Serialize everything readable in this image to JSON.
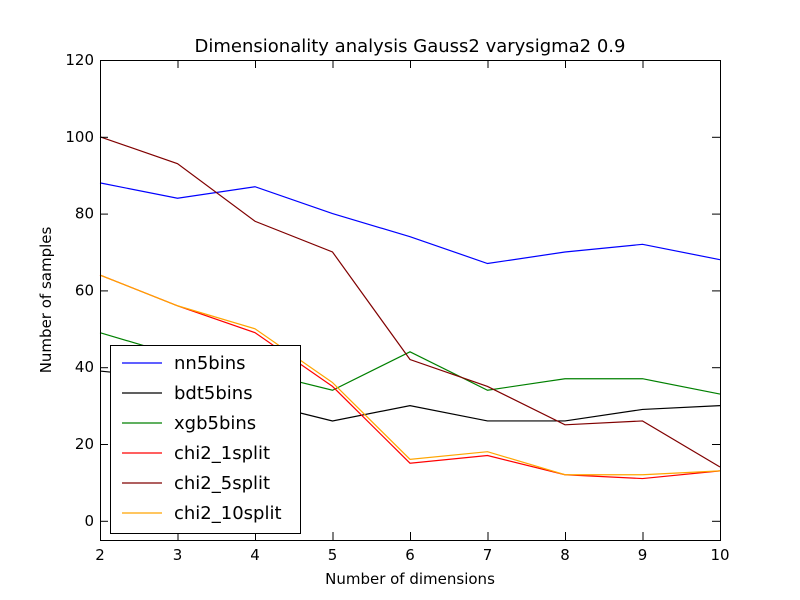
{
  "chart_data": {
    "type": "line",
    "title": "Dimensionality analysis Gauss2 varysigma2 0.9",
    "xlabel": "Number of dimensions",
    "ylabel": "Number of samples",
    "xlim": [
      2,
      10
    ],
    "ylim": [
      -5,
      120
    ],
    "xticks": [
      2,
      3,
      4,
      5,
      6,
      7,
      8,
      9,
      10
    ],
    "yticks": [
      0,
      20,
      40,
      60,
      80,
      100,
      120
    ],
    "grid": false,
    "legend_position": "lower-left",
    "x": [
      2,
      3,
      4,
      5,
      6,
      7,
      8,
      9,
      10
    ],
    "series": [
      {
        "name": "nn5bins",
        "color": "#0000ff",
        "values": [
          88,
          84,
          87,
          80,
          74,
          67,
          70,
          72,
          68
        ]
      },
      {
        "name": "bdt5bins",
        "color": "#000000",
        "values": [
          39,
          37,
          31,
          26,
          30,
          26,
          26,
          29,
          30
        ]
      },
      {
        "name": "xgb5bins",
        "color": "#008000",
        "values": [
          49,
          43,
          39,
          34,
          44,
          34,
          37,
          37,
          33
        ]
      },
      {
        "name": "chi2_1split",
        "color": "#ff0000",
        "values": [
          64,
          56,
          49,
          35,
          15,
          17,
          12,
          11,
          13
        ]
      },
      {
        "name": "chi2_5split",
        "color": "#800000",
        "values": [
          100,
          93,
          78,
          70,
          42,
          35,
          25,
          26,
          14
        ]
      },
      {
        "name": "chi2_10split",
        "color": "#ffa500",
        "values": [
          64,
          56,
          50,
          36,
          16,
          18,
          12,
          12,
          13
        ]
      }
    ]
  }
}
